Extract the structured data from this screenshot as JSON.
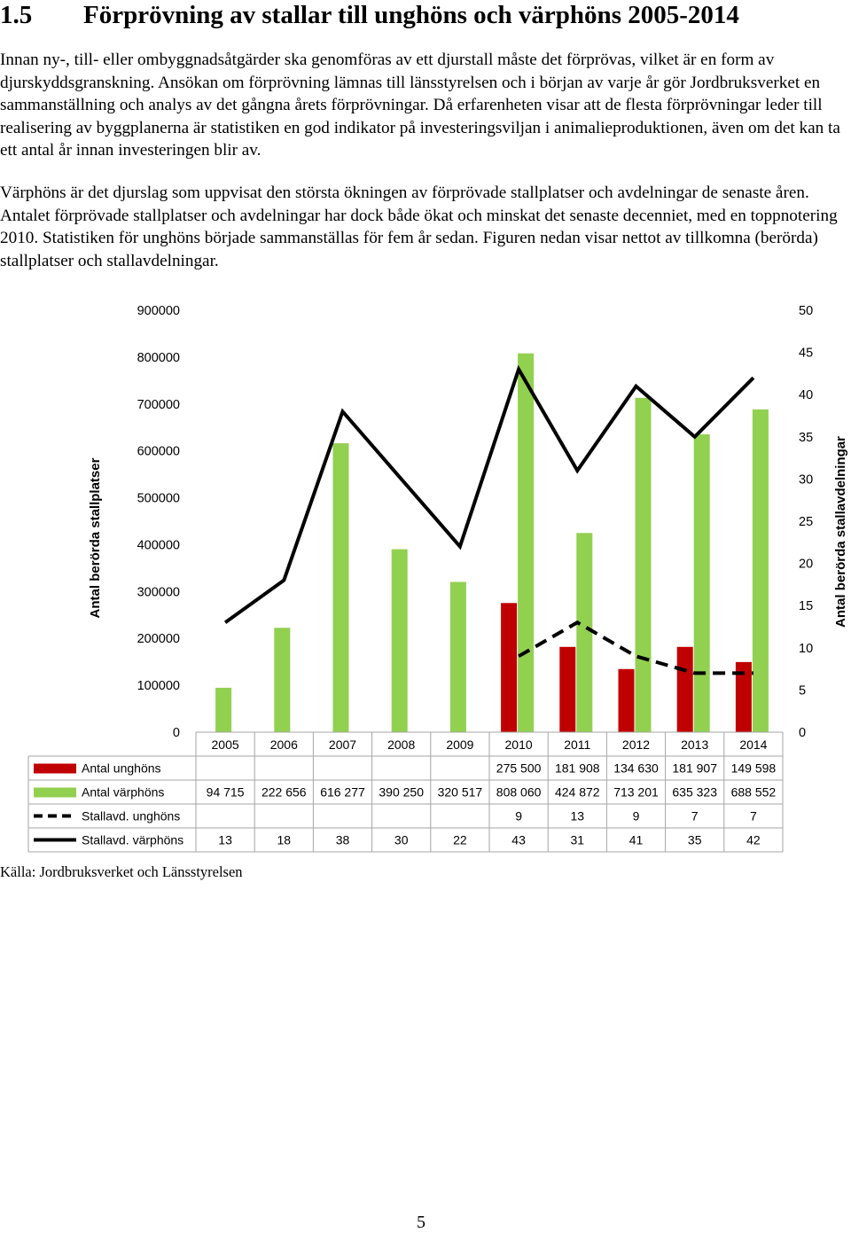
{
  "document": {
    "section_number": "1.5",
    "section_title": "Förprövning av stallar till unghöns och värphöns 2005-2014",
    "paragraph_1": "Innan ny-, till- eller ombyggnadsåtgärder ska genomföras av ett djurstall måste det förprövas, vilket är en form av djurskyddsgranskning. Ansökan om förprövning lämnas till länsstyrelsen och i början av varje år gör Jordbruksverket en sammanställning och analys av det gångna årets förprövningar. Då erfarenheten visar att de flesta förprövningar leder till realisering av byggplanerna är statistiken en god indikator på investeringsviljan i animalieproduktionen, även om det kan ta ett antal år innan investeringen blir av.",
    "paragraph_2": "Värphöns är det djurslag som uppvisat den största ökningen av förprövade stallplatser och avdelningar de senaste åren. Antalet förprövade stallplatser och avdelningar har dock både ökat och minskat det senaste decenniet, med en toppnotering 2010. Statistiken för unghöns började sammanställas för fem år sedan. Figuren nedan visar nettot av tillkomna (berörda) stallplatser och stallavdelningar.",
    "source": "Källa: Jordbruksverket och Länsstyrelsen",
    "page_number": "5"
  },
  "chart_data": {
    "type": "bar",
    "categories": [
      "2005",
      "2006",
      "2007",
      "2008",
      "2009",
      "2010",
      "2011",
      "2012",
      "2013",
      "2014"
    ],
    "ylabel_left": "Antal berörda stallplatser",
    "ylabel_right": "Antal berörda stallavdelningar",
    "ylim_left": [
      0,
      900000
    ],
    "ylim_right": [
      0,
      50
    ],
    "left_ticks": [
      "0",
      "100000",
      "200000",
      "300000",
      "400000",
      "500000",
      "600000",
      "700000",
      "800000",
      "900000"
    ],
    "right_ticks": [
      "0",
      "5",
      "10",
      "15",
      "20",
      "25",
      "30",
      "35",
      "40",
      "45",
      "50"
    ],
    "grid": false,
    "legend_placement": "data-table below chart",
    "series": [
      {
        "name": "Antal unghöns",
        "kind": "bar",
        "axis": "left",
        "color": "#C00000",
        "values": [
          null,
          null,
          null,
          null,
          null,
          275500,
          181908,
          134630,
          181907,
          149598
        ],
        "labels": [
          "",
          "",
          "",
          "",
          "",
          "275 500",
          "181 908",
          "134 630",
          "181 907",
          "149 598"
        ]
      },
      {
        "name": "Antal värphöns",
        "kind": "bar",
        "axis": "left",
        "color": "#92D050",
        "values": [
          94715,
          222656,
          616277,
          390250,
          320517,
          808060,
          424872,
          713201,
          635323,
          688552
        ],
        "labels": [
          "94 715",
          "222 656",
          "616 277",
          "390 250",
          "320 517",
          "808 060",
          "424 872",
          "713 201",
          "635 323",
          "688 552"
        ]
      },
      {
        "name": "Stallavd. unghöns",
        "kind": "line",
        "style": "dashed",
        "axis": "right",
        "color": "#000000",
        "values": [
          null,
          null,
          null,
          null,
          null,
          9,
          13,
          9,
          7,
          7
        ],
        "labels": [
          "",
          "",
          "",
          "",
          "",
          "9",
          "13",
          "9",
          "7",
          "7"
        ]
      },
      {
        "name": "Stallavd. värphöns",
        "kind": "line",
        "style": "solid",
        "axis": "right",
        "color": "#000000",
        "values": [
          13,
          18,
          38,
          30,
          22,
          43,
          31,
          41,
          35,
          42
        ],
        "labels": [
          "13",
          "18",
          "38",
          "30",
          "22",
          "43",
          "31",
          "41",
          "35",
          "42"
        ]
      }
    ]
  }
}
